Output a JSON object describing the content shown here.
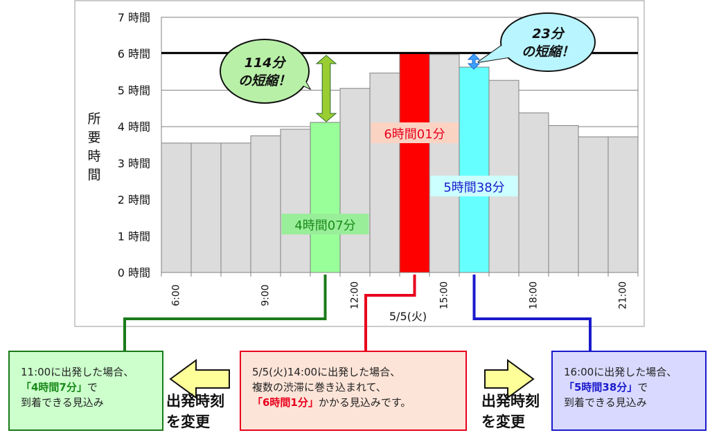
{
  "chart_data": {
    "type": "bar",
    "ylabel": "所要時間",
    "xlabel": "5/5(火)",
    "ylim": [
      0,
      7
    ],
    "y_ticks": [
      "0 時間",
      "1 時間",
      "2 時間",
      "3 時間",
      "4 時間",
      "5 時間",
      "6 時間",
      "7 時間"
    ],
    "x_ticks": [
      {
        "label": "6:00",
        "bar": 0
      },
      {
        "label": "9:00",
        "bar": 3
      },
      {
        "label": "12:00",
        "bar": 6
      },
      {
        "label": "15:00",
        "bar": 9
      },
      {
        "label": "18:00",
        "bar": 12
      },
      {
        "label": "21:00",
        "bar": 15
      }
    ],
    "values": [
      3.55,
      3.55,
      3.55,
      3.75,
      3.93,
      4.117,
      5.05,
      5.47,
      6.017,
      5.98,
      5.633,
      5.27,
      4.38,
      4.03,
      3.72,
      3.72
    ],
    "highlight": {
      "5": "#99ff99",
      "8": "#ff0000",
      "10": "#66ffff"
    },
    "reference_line": 6.02,
    "grid": true,
    "bar_labels": [
      {
        "bar": 5,
        "text": "4時間07分",
        "color": "#1a8a1a",
        "bg": "#99ee99"
      },
      {
        "bar": 8,
        "text": "6時間01分",
        "color": "#e8001c",
        "bg": "#fbd3c3"
      },
      {
        "bar": 10,
        "text": "5時間38分",
        "color": "#1a1acc",
        "bg": "#ccffff"
      }
    ],
    "callouts": [
      {
        "line1": "114分",
        "line2": "の短縮！",
        "color": "#b9f0a8"
      },
      {
        "line1": "23分",
        "line2": "の短縮！",
        "color": "#b9f5ff"
      }
    ]
  },
  "boxes": {
    "left": {
      "line1": "11:00に出発した場合、",
      "highlight": "「4時間7分」",
      "after_highlight": "で",
      "line3": "到着できる見込み"
    },
    "center": {
      "line1": "5/5(火)14:00に出発した場合、",
      "line2": "複数の渋滞に巻き込まれて、",
      "highlight": "「6時間1分」",
      "after_highlight": "かかる見込みです。"
    },
    "right": {
      "line1": "16:00に出発した場合、",
      "highlight": "「5時間38分」",
      "after_highlight": "で",
      "line3": "到着できる見込み"
    }
  },
  "change_label": {
    "line1": "出発時刻",
    "line2": "を変更"
  }
}
